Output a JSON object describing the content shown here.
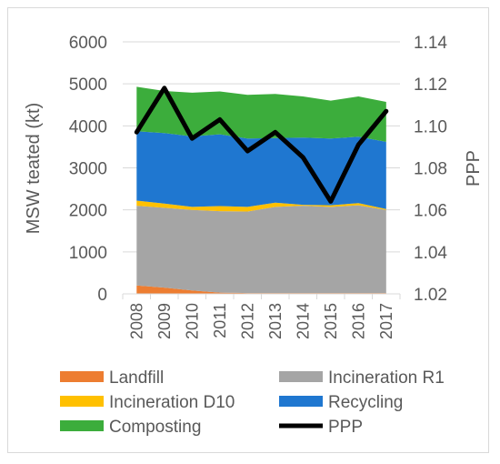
{
  "chart_data": {
    "type": "area",
    "categories": [
      "2008",
      "2009",
      "2010",
      "2011",
      "2012",
      "2013",
      "2014",
      "2015",
      "2016",
      "2017"
    ],
    "ylabel": "MSW teated (kt)",
    "y2label": "PPP",
    "ylim": [
      0,
      6000
    ],
    "y2lim": [
      1.02,
      1.14
    ],
    "yticks": [
      "0",
      "1000",
      "2000",
      "3000",
      "4000",
      "5000",
      "6000"
    ],
    "y2ticks": [
      "1.02",
      "1.04",
      "1.06",
      "1.08",
      "1.10",
      "1.12",
      "1.14"
    ],
    "grid": true,
    "legend_position": "bottom",
    "stack_order": [
      "Landfill",
      "Incineration R1",
      "Incineration D10",
      "Recycling",
      "Composting"
    ],
    "series": [
      {
        "name": "Landfill",
        "color": "#ed7d31",
        "values": [
          200,
          150,
          80,
          30,
          20,
          20,
          20,
          20,
          20,
          20
        ]
      },
      {
        "name": "Incineration R1",
        "color": "#a5a5a5",
        "values": [
          1900,
          1900,
          1920,
          1940,
          1940,
          2050,
          2080,
          2050,
          2090,
          1980
        ]
      },
      {
        "name": "Incineration D10",
        "color": "#ffc000",
        "values": [
          120,
          100,
          70,
          120,
          110,
          100,
          20,
          40,
          50,
          20
        ]
      },
      {
        "name": "Recycling",
        "color": "#1f77d0",
        "values": [
          1650,
          1680,
          1680,
          1710,
          1630,
          1540,
          1600,
          1590,
          1580,
          1600
        ]
      },
      {
        "name": "Composting",
        "color": "#3cad3c",
        "values": [
          1060,
          1000,
          1040,
          1020,
          1040,
          1050,
          980,
          900,
          960,
          950
        ]
      }
    ],
    "line_series": {
      "name": "PPP",
      "color": "#000000",
      "axis": "right",
      "values": [
        1.097,
        1.118,
        1.094,
        1.103,
        1.088,
        1.097,
        1.085,
        1.064,
        1.091,
        1.107
      ]
    }
  }
}
